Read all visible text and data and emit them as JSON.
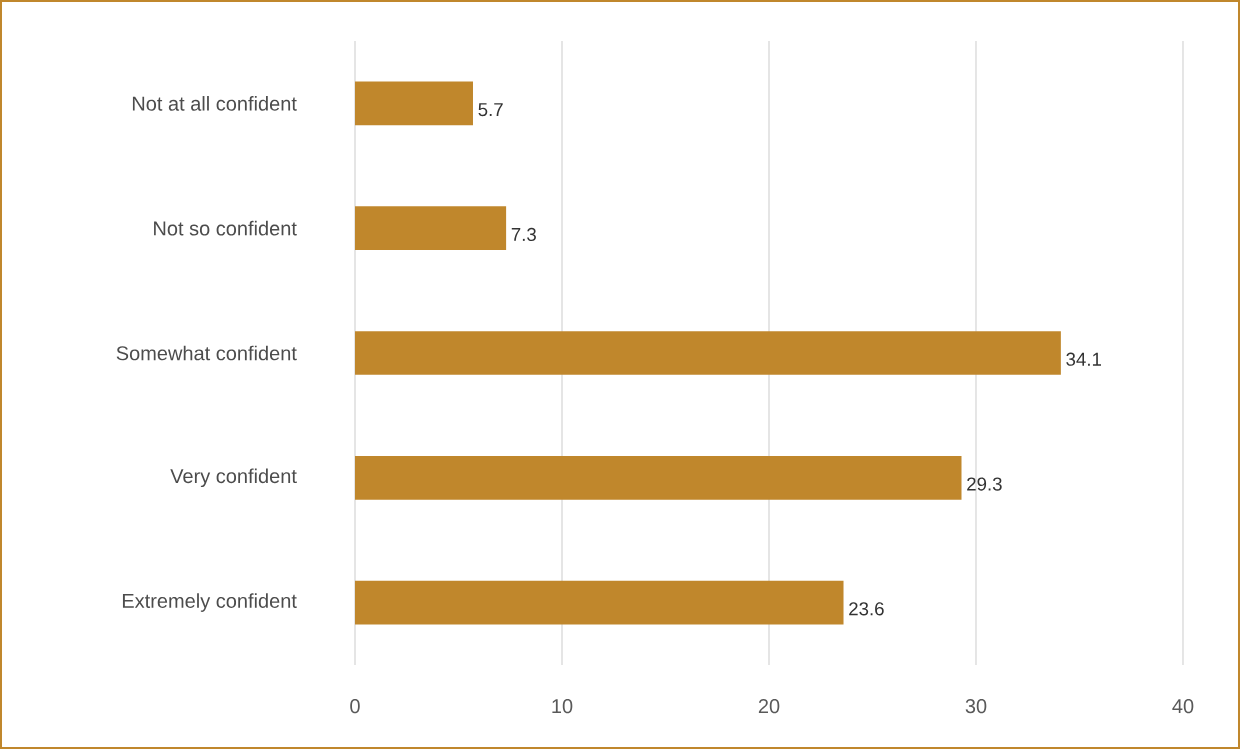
{
  "chart_data": {
    "type": "bar",
    "orientation": "horizontal",
    "categories": [
      "Not at all confident",
      "Not so confident",
      "Somewhat confident",
      "Very confident",
      "Extremely confident"
    ],
    "values": [
      5.7,
      7.3,
      34.1,
      29.3,
      23.6
    ],
    "color": "#c0872c",
    "xlim": [
      0,
      40
    ],
    "xticks": [
      0,
      10,
      20,
      30,
      40
    ],
    "grid": "x",
    "data_labels": true
  }
}
